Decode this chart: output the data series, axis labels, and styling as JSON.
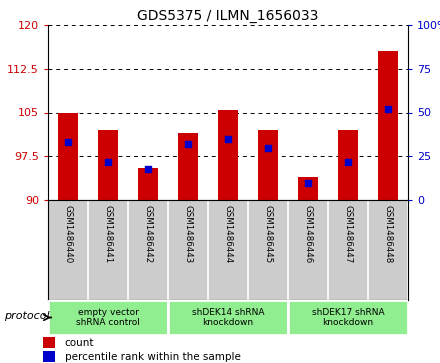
{
  "title": "GDS5375 / ILMN_1656033",
  "samples": [
    "GSM1486440",
    "GSM1486441",
    "GSM1486442",
    "GSM1486443",
    "GSM1486444",
    "GSM1486445",
    "GSM1486446",
    "GSM1486447",
    "GSM1486448"
  ],
  "count_values": [
    105.0,
    102.0,
    95.5,
    101.5,
    105.5,
    102.0,
    94.0,
    102.0,
    115.5
  ],
  "percentile_values": [
    33,
    22,
    18,
    32,
    35,
    30,
    10,
    22,
    52
  ],
  "baseline": 90,
  "ylim_left": [
    90,
    120
  ],
  "ylim_right": [
    0,
    100
  ],
  "yticks_left": [
    90,
    97.5,
    105,
    112.5,
    120
  ],
  "yticks_right": [
    0,
    25,
    50,
    75,
    100
  ],
  "ytick_labels_right": [
    "0",
    "25",
    "50",
    "75",
    "100%"
  ],
  "bar_color": "#cc0000",
  "percentile_color": "#0000cc",
  "tickarea_bg": "#cccccc",
  "proto_bg": "#90ee90",
  "protocols": [
    {
      "label": "empty vector\nshRNA control",
      "start": 0,
      "end": 3
    },
    {
      "label": "shDEK14 shRNA\nknockdown",
      "start": 3,
      "end": 6
    },
    {
      "label": "shDEK17 shRNA\nknockdown",
      "start": 6,
      "end": 9
    }
  ],
  "protocol_label": "protocol",
  "legend_count": "count",
  "legend_percentile": "percentile rank within the sample",
  "bar_width": 0.5
}
